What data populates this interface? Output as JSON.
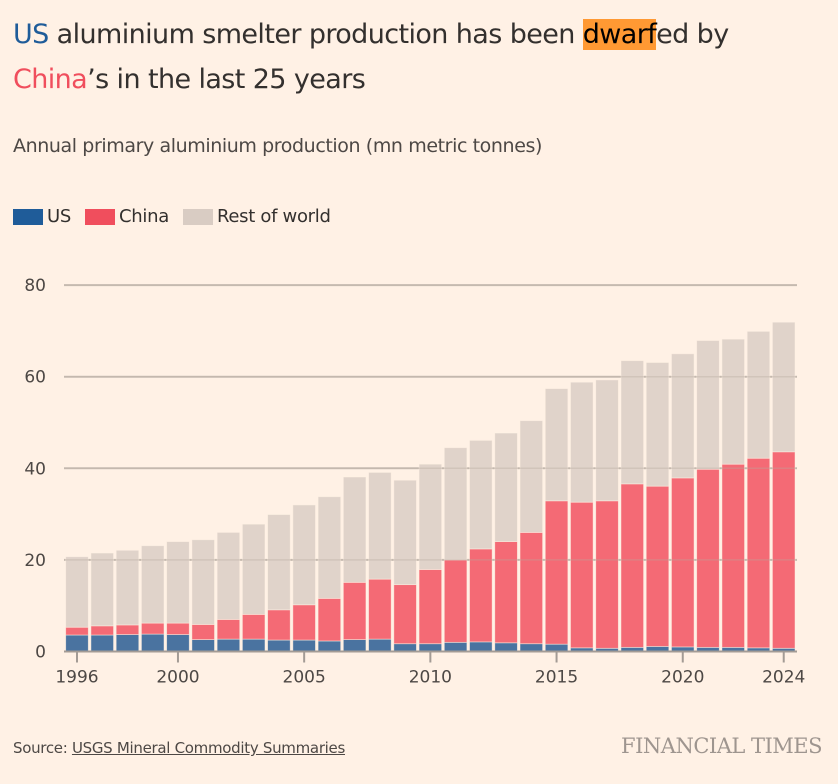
{
  "headline": {
    "us_word": "US",
    "part1": " aluminium smelter production has been ",
    "highlight": "dwarf",
    "part2": "ed by",
    "china_word": "China",
    "part3": "’s in the last 25 years"
  },
  "subtitle": "Annual primary aluminium production (mn metric tonnes)",
  "legend": [
    {
      "label": "US",
      "color": "#1f5c99"
    },
    {
      "label": "China",
      "color": "#f04e5d"
    },
    {
      "label": "Rest of world",
      "color": "#d9ccc3"
    }
  ],
  "source": {
    "prefix": "Source: ",
    "link_text": "USGS Mineral Commodity Summaries"
  },
  "brand": "FINANCIAL TIMES",
  "colors": {
    "us": "#4a73a0",
    "china": "#f46a75",
    "rest": "#e0d3ca",
    "grid": "#ccc1b7",
    "axis": "#a39b95",
    "background": "#fff1e5"
  },
  "chart_data": {
    "type": "bar",
    "stacked": true,
    "title": "Annual primary aluminium production (mn metric tonnes)",
    "xlabel": "",
    "ylabel": "",
    "ylim": [
      0,
      80
    ],
    "yticks": [
      0,
      20,
      40,
      60,
      80
    ],
    "xticks": [
      1996,
      2000,
      2005,
      2010,
      2015,
      2020,
      2024
    ],
    "grid": true,
    "legend_position": "top-left",
    "categories": [
      1996,
      1997,
      1998,
      1999,
      2000,
      2001,
      2002,
      2003,
      2004,
      2005,
      2006,
      2007,
      2008,
      2009,
      2010,
      2011,
      2012,
      2013,
      2014,
      2015,
      2016,
      2017,
      2018,
      2019,
      2020,
      2021,
      2022,
      2023,
      2024
    ],
    "series": [
      {
        "name": "US",
        "values": [
          3.6,
          3.6,
          3.7,
          3.8,
          3.7,
          2.6,
          2.7,
          2.7,
          2.5,
          2.5,
          2.3,
          2.6,
          2.7,
          1.7,
          1.7,
          2.0,
          2.1,
          1.9,
          1.7,
          1.6,
          0.8,
          0.7,
          0.9,
          1.1,
          1.0,
          0.9,
          0.9,
          0.8,
          0.7
        ]
      },
      {
        "name": "China",
        "values": [
          1.7,
          2.0,
          2.1,
          2.4,
          2.5,
          3.3,
          4.3,
          5.4,
          6.6,
          7.7,
          9.3,
          12.5,
          13.1,
          12.9,
          16.2,
          18.0,
          20.3,
          22.1,
          24.3,
          31.3,
          31.8,
          32.2,
          35.7,
          35.0,
          36.9,
          38.9,
          40.0,
          41.4,
          42.9
        ]
      },
      {
        "name": "Rest of world",
        "values": [
          15.4,
          15.9,
          16.3,
          16.9,
          17.8,
          18.5,
          19.0,
          19.7,
          20.8,
          21.8,
          22.2,
          23.0,
          23.3,
          22.8,
          23.0,
          24.5,
          23.7,
          23.7,
          24.4,
          24.5,
          26.2,
          26.4,
          26.9,
          27.0,
          27.1,
          28.1,
          27.3,
          27.7,
          28.3
        ]
      }
    ],
    "totals": [
      20.7,
      21.5,
      22.1,
      23.1,
      24.0,
      24.4,
      26.0,
      27.8,
      29.9,
      32.0,
      33.8,
      38.1,
      39.1,
      37.4,
      40.9,
      44.5,
      46.1,
      47.7,
      50.4,
      57.4,
      58.8,
      59.3,
      63.5,
      63.1,
      65.0,
      67.9,
      68.2,
      69.9,
      71.9
    ]
  }
}
